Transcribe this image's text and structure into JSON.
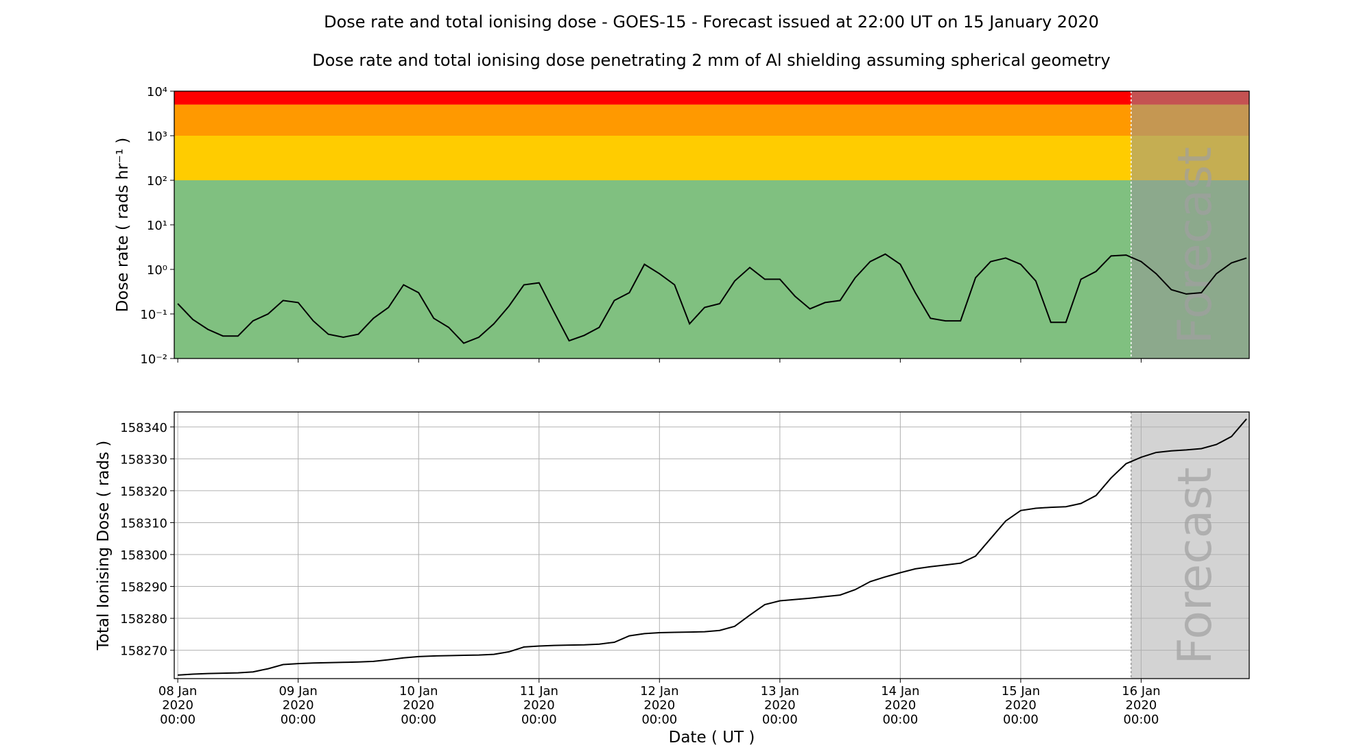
{
  "chart_data": [
    {
      "type": "line",
      "title": "Dose rate and total ionising dose - GOES-15 - Forecast issued at 22:00 UT on 15 January 2020",
      "subtitle": "Dose rate and total ionising dose penetrating 2 mm of Al shielding assuming spherical geometry",
      "ylabel": "Dose rate ( rads hr⁻¹ )",
      "log_y": true,
      "ylim": [
        0.01,
        10000
      ],
      "yticks": [
        {
          "value": 0.01,
          "label": "10⁻²"
        },
        {
          "value": 0.1,
          "label": "10⁻¹"
        },
        {
          "value": 1,
          "label": "10⁰"
        },
        {
          "value": 10,
          "label": "10¹"
        },
        {
          "value": 100,
          "label": "10²"
        },
        {
          "value": 1000,
          "label": "10³"
        },
        {
          "value": 10000,
          "label": "10⁴"
        }
      ],
      "xlim": [
        "2020-01-07T23:18",
        "2020-01-16T21:32"
      ],
      "bands": [
        {
          "from": 0.01,
          "to": 100,
          "color": "#80c080"
        },
        {
          "from": 100,
          "to": 1000,
          "color": "#ffcc00"
        },
        {
          "from": 1000,
          "to": 5000,
          "color": "#ff9900"
        },
        {
          "from": 5000,
          "to": 10000,
          "color": "#ff0000"
        }
      ],
      "forecast_start": "2020-01-15T22:00",
      "annotation": "Forecast",
      "grid": false,
      "x": [
        "2020-01-08T00:00",
        "2020-01-08T03:00",
        "2020-01-08T06:00",
        "2020-01-08T09:00",
        "2020-01-08T12:00",
        "2020-01-08T15:00",
        "2020-01-08T18:00",
        "2020-01-08T21:00",
        "2020-01-09T00:00",
        "2020-01-09T03:00",
        "2020-01-09T06:00",
        "2020-01-09T09:00",
        "2020-01-09T12:00",
        "2020-01-09T15:00",
        "2020-01-09T18:00",
        "2020-01-09T21:00",
        "2020-01-10T00:00",
        "2020-01-10T03:00",
        "2020-01-10T06:00",
        "2020-01-10T09:00",
        "2020-01-10T12:00",
        "2020-01-10T15:00",
        "2020-01-10T18:00",
        "2020-01-10T21:00",
        "2020-01-11T00:00",
        "2020-01-11T03:00",
        "2020-01-11T06:00",
        "2020-01-11T09:00",
        "2020-01-11T12:00",
        "2020-01-11T15:00",
        "2020-01-11T18:00",
        "2020-01-11T21:00",
        "2020-01-12T00:00",
        "2020-01-12T03:00",
        "2020-01-12T06:00",
        "2020-01-12T09:00",
        "2020-01-12T12:00",
        "2020-01-12T15:00",
        "2020-01-12T18:00",
        "2020-01-12T21:00",
        "2020-01-13T00:00",
        "2020-01-13T03:00",
        "2020-01-13T06:00",
        "2020-01-13T09:00",
        "2020-01-13T12:00",
        "2020-01-13T15:00",
        "2020-01-13T18:00",
        "2020-01-13T21:00",
        "2020-01-14T00:00",
        "2020-01-14T03:00",
        "2020-01-14T06:00",
        "2020-01-14T09:00",
        "2020-01-14T12:00",
        "2020-01-14T15:00",
        "2020-01-14T18:00",
        "2020-01-14T21:00",
        "2020-01-15T00:00",
        "2020-01-15T03:00",
        "2020-01-15T06:00",
        "2020-01-15T09:00",
        "2020-01-15T12:00",
        "2020-01-15T15:00",
        "2020-01-15T18:00",
        "2020-01-15T21:00",
        "2020-01-16T00:00",
        "2020-01-16T03:00",
        "2020-01-16T06:00",
        "2020-01-16T09:00",
        "2020-01-16T12:00",
        "2020-01-16T15:00",
        "2020-01-16T18:00",
        "2020-01-16T21:00"
      ],
      "series": [
        {
          "color": "#000000",
          "values": [
            0.17,
            0.075,
            0.045,
            0.032,
            0.032,
            0.07,
            0.1,
            0.2,
            0.18,
            0.07,
            0.035,
            0.03,
            0.035,
            0.08,
            0.14,
            0.45,
            0.3,
            0.08,
            0.05,
            0.022,
            0.03,
            0.06,
            0.15,
            0.45,
            0.5,
            0.11,
            0.025,
            0.033,
            0.05,
            0.2,
            0.3,
            1.3,
            0.8,
            0.45,
            0.06,
            0.14,
            0.17,
            0.55,
            1.1,
            0.6,
            0.6,
            0.25,
            0.13,
            0.18,
            0.2,
            0.65,
            1.5,
            2.2,
            1.3,
            0.3,
            0.08,
            0.07,
            0.07,
            0.65,
            1.5,
            1.8,
            1.3,
            0.55,
            0.065,
            0.065,
            0.6,
            0.9,
            2.0,
            2.1,
            1.5,
            0.8,
            0.35,
            0.28,
            0.3,
            0.8,
            1.4,
            1.8
          ]
        }
      ]
    },
    {
      "type": "line",
      "ylabel": "Total Ionising Dose ( rads )",
      "xlabel": "Date ( UT )",
      "log_y": false,
      "ylim": [
        158261.1,
        158344.7
      ],
      "yticks": [
        158270,
        158280,
        158290,
        158300,
        158310,
        158320,
        158330,
        158340
      ],
      "xlim": [
        "2020-01-07T23:18",
        "2020-01-16T21:32"
      ],
      "xticks": [
        {
          "value": "2020-01-08T00:00",
          "label": "08 Jan\n2020\n00:00"
        },
        {
          "value": "2020-01-09T00:00",
          "label": "09 Jan\n2020\n00:00"
        },
        {
          "value": "2020-01-10T00:00",
          "label": "10 Jan\n2020\n00:00"
        },
        {
          "value": "2020-01-11T00:00",
          "label": "11 Jan\n2020\n00:00"
        },
        {
          "value": "2020-01-12T00:00",
          "label": "12 Jan\n2020\n00:00"
        },
        {
          "value": "2020-01-13T00:00",
          "label": "13 Jan\n2020\n00:00"
        },
        {
          "value": "2020-01-14T00:00",
          "label": "14 Jan\n2020\n00:00"
        },
        {
          "value": "2020-01-15T00:00",
          "label": "15 Jan\n2020\n00:00"
        },
        {
          "value": "2020-01-16T00:00",
          "label": "16 Jan\n2020\n00:00"
        }
      ],
      "forecast_start": "2020-01-15T22:00",
      "annotation": "Forecast",
      "grid": true,
      "forecast_color": "#d3d3d3",
      "x": [
        "2020-01-08T00:00",
        "2020-01-08T03:00",
        "2020-01-08T06:00",
        "2020-01-08T09:00",
        "2020-01-08T12:00",
        "2020-01-08T15:00",
        "2020-01-08T18:00",
        "2020-01-08T21:00",
        "2020-01-09T00:00",
        "2020-01-09T03:00",
        "2020-01-09T06:00",
        "2020-01-09T09:00",
        "2020-01-09T12:00",
        "2020-01-09T15:00",
        "2020-01-09T18:00",
        "2020-01-09T21:00",
        "2020-01-10T00:00",
        "2020-01-10T03:00",
        "2020-01-10T06:00",
        "2020-01-10T09:00",
        "2020-01-10T12:00",
        "2020-01-10T15:00",
        "2020-01-10T18:00",
        "2020-01-10T21:00",
        "2020-01-11T00:00",
        "2020-01-11T03:00",
        "2020-01-11T06:00",
        "2020-01-11T09:00",
        "2020-01-11T12:00",
        "2020-01-11T15:00",
        "2020-01-11T18:00",
        "2020-01-11T21:00",
        "2020-01-12T00:00",
        "2020-01-12T03:00",
        "2020-01-12T06:00",
        "2020-01-12T09:00",
        "2020-01-12T12:00",
        "2020-01-12T15:00",
        "2020-01-12T18:00",
        "2020-01-12T21:00",
        "2020-01-13T00:00",
        "2020-01-13T03:00",
        "2020-01-13T06:00",
        "2020-01-13T09:00",
        "2020-01-13T12:00",
        "2020-01-13T15:00",
        "2020-01-13T18:00",
        "2020-01-13T21:00",
        "2020-01-14T00:00",
        "2020-01-14T03:00",
        "2020-01-14T06:00",
        "2020-01-14T09:00",
        "2020-01-14T12:00",
        "2020-01-14T15:00",
        "2020-01-14T18:00",
        "2020-01-14T21:00",
        "2020-01-15T00:00",
        "2020-01-15T03:00",
        "2020-01-15T06:00",
        "2020-01-15T09:00",
        "2020-01-15T12:00",
        "2020-01-15T15:00",
        "2020-01-15T18:00",
        "2020-01-15T21:00",
        "2020-01-16T00:00",
        "2020-01-16T03:00",
        "2020-01-16T06:00",
        "2020-01-16T09:00",
        "2020-01-16T12:00",
        "2020-01-16T15:00",
        "2020-01-16T18:00",
        "2020-01-16T21:00"
      ],
      "series": [
        {
          "color": "#000000",
          "values": [
            158262.2,
            158262.5,
            158262.7,
            158262.8,
            158262.9,
            158263.2,
            158264.2,
            158265.5,
            158265.8,
            158266.0,
            158266.1,
            158266.2,
            158266.3,
            158266.5,
            158267.0,
            158267.6,
            158268.0,
            158268.2,
            158268.3,
            158268.4,
            158268.5,
            158268.7,
            158269.5,
            158271.0,
            158271.3,
            158271.5,
            158271.6,
            158271.7,
            158271.9,
            158272.5,
            158274.5,
            158275.2,
            158275.5,
            158275.6,
            158275.7,
            158275.8,
            158276.2,
            158277.5,
            158281.0,
            158284.3,
            158285.5,
            158285.9,
            158286.3,
            158286.8,
            158287.3,
            158289.0,
            158291.5,
            158293.0,
            158294.3,
            158295.5,
            158296.2,
            158296.7,
            158297.3,
            158299.5,
            158305.0,
            158310.5,
            158313.8,
            158314.5,
            158314.8,
            158315.0,
            158316.0,
            158318.5,
            158324.0,
            158328.5,
            158330.5,
            158332.0,
            158332.5,
            158332.8,
            158333.2,
            158334.5,
            158337.0,
            158342.5
          ]
        }
      ]
    }
  ]
}
